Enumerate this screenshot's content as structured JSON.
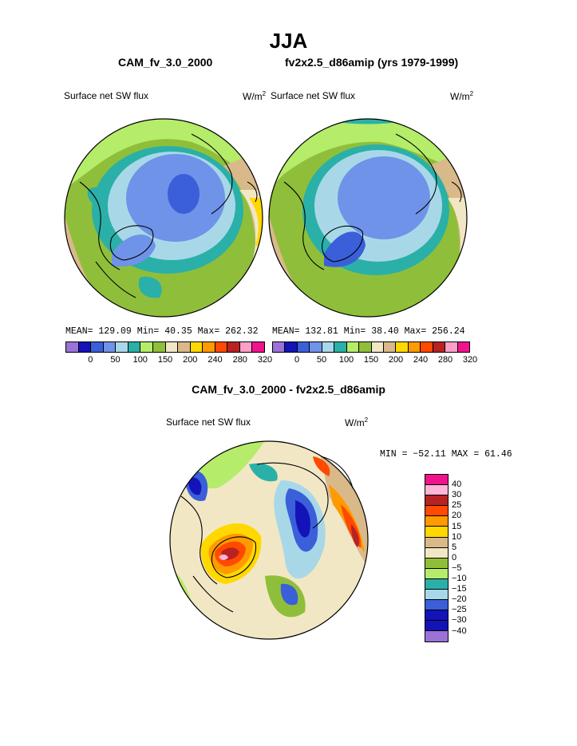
{
  "title": "JJA",
  "run_a": "CAM_fv_3.0_2000",
  "run_b": "fv2x2.5_d86amip (yrs 1979-1999)",
  "diff_title": "CAM_fv_3.0_2000 - fv2x2.5_d86amip",
  "field": "Surface net SW flux",
  "units_base": "W/m",
  "units_sup": "2",
  "left_panel": {
    "stats": "MEAN= 129.09   Min=  40.35   Max= 262.32"
  },
  "right_panel": {
    "stats": "MEAN= 132.81   Min=  38.40   Max= 256.24"
  },
  "diff_panel": {
    "stats": "MIN = −52.11 MAX =  61.46"
  },
  "abs_colorbar": {
    "labels": [
      "0",
      "50",
      "100",
      "150",
      "200",
      "240",
      "280",
      "320"
    ],
    "colors": [
      "#9b72d6",
      "#1313b8",
      "#3a5fd9",
      "#6f93e8",
      "#a8d8e8",
      "#2ab0a8",
      "#b5ec6a",
      "#8fbf3a",
      "#f2e7c4",
      "#d9b98a",
      "#ffd800",
      "#ff9a00",
      "#ff4a00",
      "#b82222",
      "#ff9ec8",
      "#f0148c"
    ]
  },
  "diff_colorbar": {
    "labels": [
      "40",
      "30",
      "25",
      "20",
      "15",
      "10",
      "5",
      "0",
      "−5",
      "−10",
      "−15",
      "−20",
      "−25",
      "−30",
      "−40"
    ],
    "colors": [
      "#f0148c",
      "#ffb4d8",
      "#b82222",
      "#ff4a00",
      "#ff9a00",
      "#ffd800",
      "#d9b98a",
      "#f2e7c4",
      "#8fbf3a",
      "#b5ec6a",
      "#2ab0a8",
      "#a8d8e8",
      "#3a5fd9",
      "#1313b8",
      "#1313b8",
      "#9b72d6"
    ]
  }
}
